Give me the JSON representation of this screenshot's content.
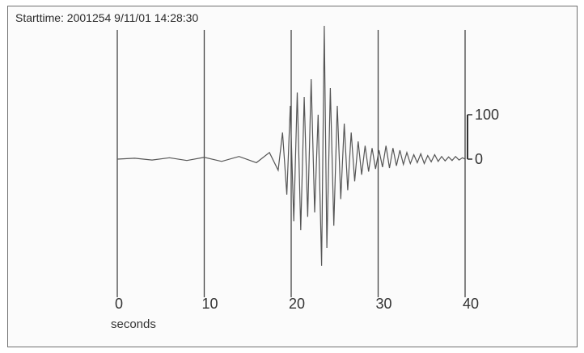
{
  "title": "Starttime: 2001254 9/11/01 14:28:30",
  "chart_data": {
    "type": "line",
    "title": "Starttime: 2001254 9/11/01 14:28:30",
    "xlabel": "seconds",
    "ylabel": "",
    "xlim": [
      0,
      40
    ],
    "ylim": [
      -300,
      320
    ],
    "x_ticks": [
      0,
      10,
      20,
      30,
      40
    ],
    "x_tick_labels": [
      "0",
      "10",
      "20",
      "30",
      "40"
    ],
    "y_scale_ticks": [
      0,
      100
    ],
    "y_scale_labels": [
      "0",
      "100"
    ],
    "grid": "vertical lines at x ticks",
    "series": [
      {
        "x": [
          0,
          2,
          4,
          6,
          8,
          10,
          12,
          14,
          16,
          17.5,
          18.5,
          19.0,
          19.5,
          19.9,
          20.3,
          20.7,
          21.1,
          21.5,
          21.9,
          22.3,
          22.7,
          23.1,
          23.5,
          23.8,
          24.1,
          24.5,
          24.9,
          25.3,
          25.7,
          26.1,
          26.5,
          26.9,
          27.3,
          27.7,
          28.1,
          28.5,
          28.9,
          29.3,
          29.7,
          30.1,
          30.5,
          30.9,
          31.3,
          31.7,
          32.1,
          32.5,
          32.9,
          33.3,
          33.7,
          34.1,
          34.5,
          34.9,
          35.3,
          35.7,
          36.1,
          36.5,
          36.9,
          37.3,
          37.7,
          38.1,
          38.5,
          38.9,
          39.3,
          39.7,
          40
        ],
        "y": [
          0,
          2,
          -2,
          3,
          -3,
          4,
          -5,
          6,
          -8,
          15,
          -25,
          60,
          -80,
          120,
          -140,
          150,
          -160,
          140,
          -130,
          180,
          -120,
          100,
          -240,
          300,
          -200,
          160,
          -150,
          120,
          -90,
          80,
          -70,
          60,
          -50,
          40,
          -35,
          30,
          -28,
          25,
          -22,
          20,
          -18,
          30,
          -20,
          25,
          -15,
          20,
          -12,
          15,
          -10,
          10,
          -8,
          12,
          -10,
          8,
          -6,
          10,
          -5,
          6,
          -4,
          5,
          -3,
          6,
          -2,
          3,
          0
        ]
      }
    ]
  }
}
